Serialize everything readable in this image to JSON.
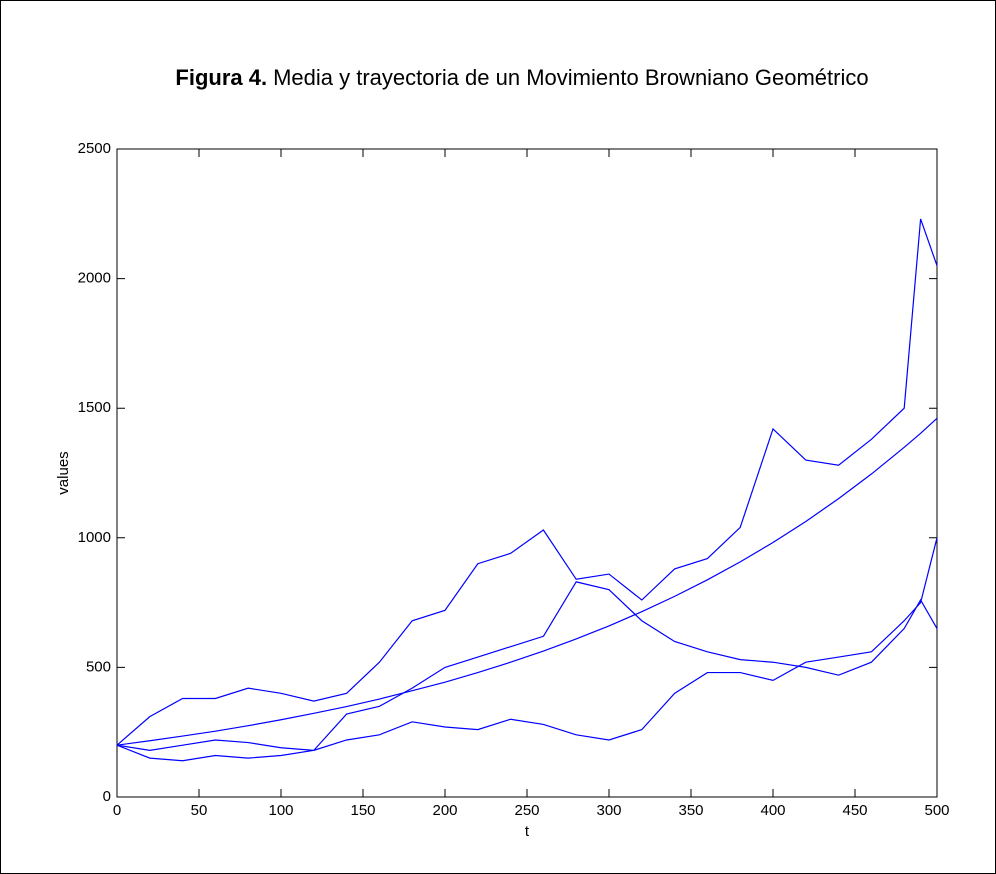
{
  "chart_data": {
    "type": "line",
    "figure_label": "Figura 4.",
    "title": "Media y trayectoria de un Movimiento Browniano Geométrico",
    "xlabel": "t",
    "ylabel": "values",
    "x": [
      0,
      20,
      40,
      60,
      80,
      100,
      120,
      140,
      160,
      180,
      200,
      220,
      240,
      260,
      280,
      300,
      320,
      340,
      360,
      380,
      400,
      420,
      440,
      460,
      480,
      490,
      500
    ],
    "series": [
      {
        "color": "#0000ff",
        "values": [
          200,
          217,
          235,
          254,
          275,
          298,
          323,
          349,
          378,
          410,
          443,
          480,
          520,
          563,
          610,
          660,
          715,
          774,
          838,
          907,
          982,
          1063,
          1151,
          1246,
          1349,
          1403,
          1461
        ]
      },
      {
        "color": "#0000ff",
        "values": [
          200,
          310,
          380,
          380,
          420,
          400,
          370,
          400,
          520,
          680,
          720,
          900,
          940,
          1030,
          840,
          860,
          760,
          880,
          920,
          1040,
          1420,
          1300,
          1280,
          1380,
          1500,
          2230,
          2050
        ]
      },
      {
        "color": "#0000ff",
        "values": [
          200,
          150,
          140,
          160,
          150,
          160,
          180,
          320,
          350,
          420,
          500,
          540,
          580,
          620,
          830,
          800,
          680,
          600,
          560,
          530,
          520,
          500,
          470,
          520,
          650,
          760,
          650
        ]
      },
      {
        "color": "#0000ff",
        "values": [
          200,
          180,
          200,
          220,
          210,
          190,
          180,
          220,
          240,
          290,
          270,
          260,
          300,
          280,
          240,
          220,
          260,
          400,
          480,
          480,
          450,
          520,
          540,
          560,
          680,
          750,
          1000
        ]
      }
    ],
    "xlim": [
      0,
      500
    ],
    "xticks": [
      0,
      50,
      100,
      150,
      200,
      250,
      300,
      350,
      400,
      450,
      500
    ],
    "ylim": [
      0,
      2500
    ],
    "yticks": [
      0,
      500,
      1000,
      1500,
      2000,
      2500
    ]
  }
}
